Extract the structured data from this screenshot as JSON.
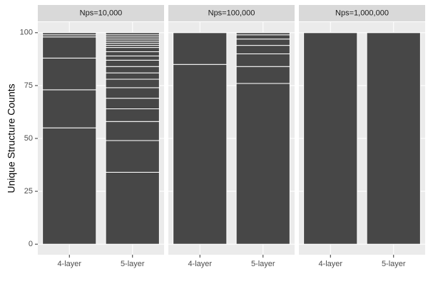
{
  "chart_data": {
    "type": "stacked_bar",
    "y_label": "Unique Structure Counts",
    "ylim": [
      -5,
      105
    ],
    "yticks": [
      0,
      25,
      50,
      75,
      100
    ],
    "grid": true,
    "color": "#474747",
    "facets": [
      {
        "title": "Nps=10,000",
        "categories": [
          "4-layer",
          "5-layer"
        ],
        "values": [
          [
            55,
            18,
            15,
            10,
            1,
            1
          ],
          [
            34,
            15,
            9,
            6,
            5,
            5,
            4,
            3,
            3,
            3,
            2,
            2,
            2,
            1,
            1,
            1,
            1,
            1,
            1,
            1
          ]
        ]
      },
      {
        "title": "Nps=100,000",
        "categories": [
          "4-layer",
          "5-layer"
        ],
        "values": [
          [
            85,
            15
          ],
          [
            76,
            8,
            6,
            4,
            3,
            2,
            1
          ]
        ]
      },
      {
        "title": "Nps=1,000,000",
        "categories": [
          "4-layer",
          "5-layer"
        ],
        "values": [
          [
            100
          ],
          [
            100
          ]
        ]
      }
    ]
  }
}
